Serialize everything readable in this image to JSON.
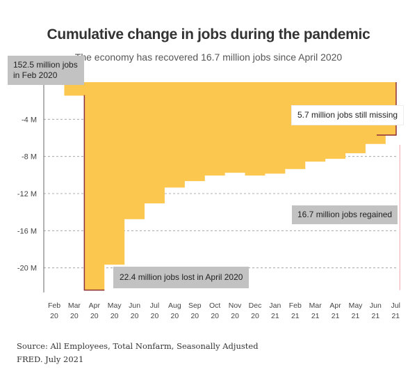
{
  "chart_data": {
    "type": "area",
    "title": "Cumulative change in jobs during the pandemic",
    "subtitle": "The economy has recovered 16.7 million jobs since April 2020",
    "xlabel": "",
    "ylabel": "",
    "categories": [
      "Feb 20",
      "Mar 20",
      "Apr 20",
      "May 20",
      "Jun 20",
      "Jul 20",
      "Aug 20",
      "Sep 20",
      "Oct 20",
      "Nov 20",
      "Dec 20",
      "Jan 21",
      "Feb 21",
      "Mar 21",
      "Apr 21",
      "May 21",
      "Jun 21",
      "Jul 21"
    ],
    "x_ticks": [
      {
        "month": "Feb",
        "year": "20"
      },
      {
        "month": "Mar",
        "year": "20"
      },
      {
        "month": "Apr",
        "year": "20"
      },
      {
        "month": "May",
        "year": "20"
      },
      {
        "month": "Jun",
        "year": "20"
      },
      {
        "month": "Jul",
        "year": "20"
      },
      {
        "month": "Aug",
        "year": "20"
      },
      {
        "month": "Sep",
        "year": "20"
      },
      {
        "month": "Oct",
        "year": "20"
      },
      {
        "month": "Nov",
        "year": "20"
      },
      {
        "month": "Dec",
        "year": "20"
      },
      {
        "month": "Jan",
        "year": "21"
      },
      {
        "month": "Feb",
        "year": "21"
      },
      {
        "month": "Mar",
        "year": "21"
      },
      {
        "month": "Apr",
        "year": "21"
      },
      {
        "month": "May",
        "year": "21"
      },
      {
        "month": "Jun",
        "year": "21"
      },
      {
        "month": "Jul",
        "year": "21"
      }
    ],
    "series": [
      {
        "values": [
          0,
          -1.4,
          -22.4,
          -19.6,
          -14.7,
          -13.0,
          -11.3,
          -10.6,
          -10.0,
          -9.7,
          -10.0,
          -9.8,
          -9.3,
          -8.5,
          -8.2,
          -7.6,
          -6.6,
          -5.7
        ]
      }
    ],
    "y_ticks": [
      {
        "value": -4,
        "label": "-4 M"
      },
      {
        "value": -8,
        "label": "-8 M"
      },
      {
        "value": -12,
        "label": "-12 M"
      },
      {
        "value": -16,
        "label": "-16 M"
      },
      {
        "value": -20,
        "label": "-20 M"
      }
    ],
    "ylim": [
      -22.5,
      0
    ],
    "grid": true,
    "annotations": {
      "start": "152.5 million jobs in Feb 2020",
      "missing": "5.7 million jobs still missing",
      "regained": "16.7 million jobs regained",
      "lost": "22.4 million jobs lost in April 2020"
    }
  },
  "colors": {
    "fill": "#fcc74f",
    "outline": "#8b2f3b",
    "grid": "#999999",
    "axis": "#666666",
    "regained_line": "#f0a0a8"
  },
  "source_lines": [
    "Source: All Employees, Total Nonfarm, Seasonally Adjusted",
    "FRED. July 2021"
  ]
}
